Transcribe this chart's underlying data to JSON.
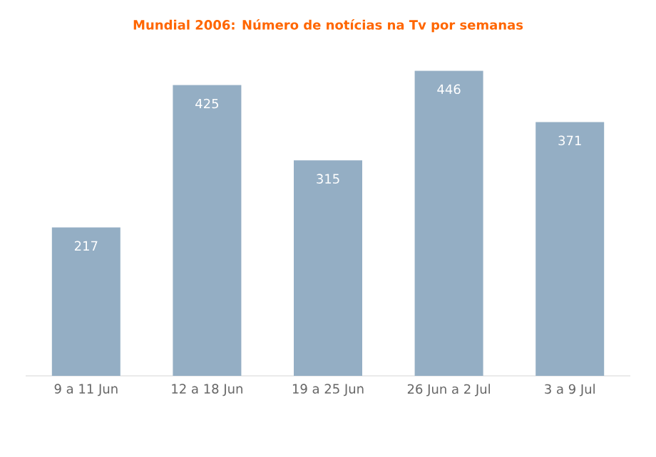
{
  "chart_data": {
    "type": "bar",
    "title": "Mundial 2006: Número de notícias na Tv por semanas",
    "categories": [
      "9 a 11 Jun",
      "12 a 18 Jun",
      "19 a 25 Jun",
      "26 Jun a 2 Jul",
      "3 a 9 Jul"
    ],
    "values": [
      217,
      425,
      315,
      446,
      371
    ],
    "color": "#94aec4",
    "data_labels": true
  }
}
